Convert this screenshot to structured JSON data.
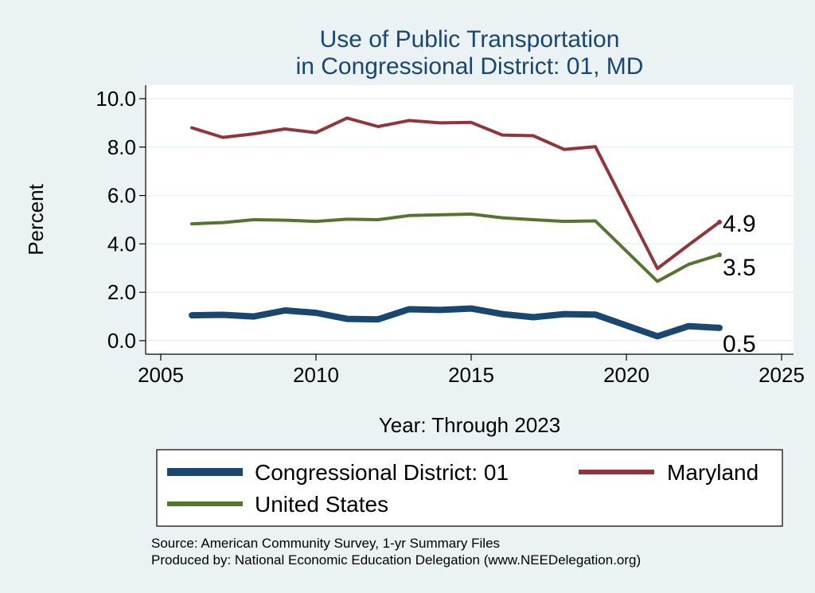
{
  "chart_data": {
    "type": "line",
    "title": [
      "Use of Public Transportation",
      "in Congressional District: 01, MD"
    ],
    "xlabel": "Year: Through 2023",
    "ylabel": "Percent",
    "xlim": [
      2005,
      2025
    ],
    "ylim": [
      0,
      10
    ],
    "x_ticks": [
      2005,
      2010,
      2015,
      2020,
      2025
    ],
    "y_ticks": [
      "0.0",
      "2.0",
      "4.0",
      "6.0",
      "8.0",
      "10.0"
    ],
    "grid": "horizontal",
    "legend_position": "bottom",
    "x": [
      2006,
      2007,
      2008,
      2009,
      2010,
      2011,
      2012,
      2013,
      2014,
      2015,
      2016,
      2017,
      2018,
      2019,
      2021,
      2022,
      2023
    ],
    "series": [
      {
        "name": "Congressional District: 01",
        "color": "#1a476f",
        "values": [
          1.05,
          1.07,
          1.0,
          1.25,
          1.15,
          0.9,
          0.88,
          1.3,
          1.27,
          1.33,
          1.1,
          0.97,
          1.1,
          1.08,
          0.18,
          0.6,
          0.53
        ],
        "end_label": "0.5"
      },
      {
        "name": "Maryland",
        "color": "#90353b",
        "values": [
          8.8,
          8.4,
          8.55,
          8.75,
          8.6,
          9.2,
          8.85,
          9.1,
          9.0,
          9.02,
          8.5,
          8.47,
          7.9,
          8.02,
          2.98,
          3.95,
          4.9
        ],
        "end_label": "4.9"
      },
      {
        "name": "United States",
        "color": "#55752f",
        "values": [
          4.83,
          4.88,
          5.0,
          4.98,
          4.93,
          5.02,
          5.0,
          5.17,
          5.2,
          5.23,
          5.08,
          5.0,
          4.93,
          4.95,
          2.45,
          3.15,
          3.55
        ],
        "end_label": "3.5"
      }
    ]
  },
  "notes": [
    "Source: American Community Survey, 1-yr Summary Files",
    "Produced by: National Economic Education Delegation (www.NEEDelegation.org)"
  ]
}
